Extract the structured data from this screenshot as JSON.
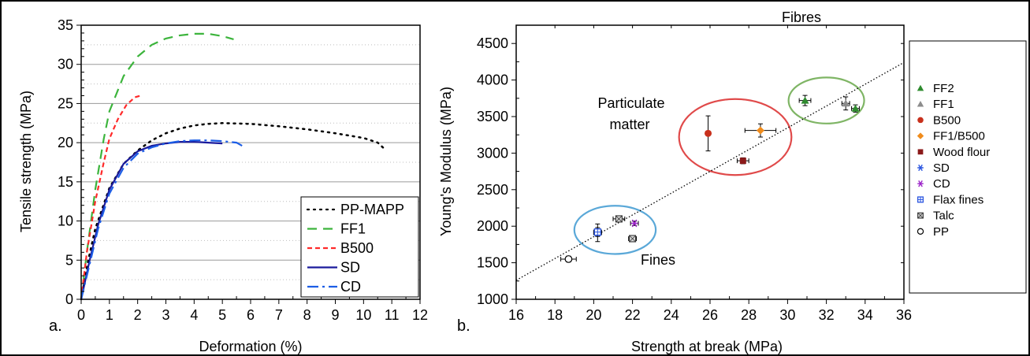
{
  "chart_data": [
    {
      "type": "line",
      "panel_label": "a.",
      "xlabel": "Deformation (%)",
      "ylabel": "Tensile strength (MPa)",
      "xlim": [
        0,
        12
      ],
      "ylim": [
        0,
        35
      ],
      "xticks": [
        "0",
        "1",
        "2",
        "3",
        "4",
        "5",
        "6",
        "7",
        "8",
        "9",
        "10",
        "11",
        "12"
      ],
      "yticks": [
        "0",
        "5",
        "10",
        "15",
        "20",
        "25",
        "30",
        "35"
      ],
      "grid": "horizontal",
      "legend_position": "bottom-right",
      "series": [
        {
          "name": "PP-MAPP",
          "color": "#000000",
          "dash": "2,6",
          "x": [
            0,
            0.25,
            0.5,
            1,
            1.5,
            2,
            2.5,
            3,
            3.5,
            4,
            4.5,
            5,
            6,
            7,
            8,
            9,
            10,
            10.5,
            10.8
          ],
          "y": [
            0,
            5,
            9,
            14.2,
            17.3,
            19,
            20.3,
            21.2,
            21.8,
            22.2,
            22.4,
            22.5,
            22.4,
            22.1,
            21.7,
            21.2,
            20.6,
            20,
            19
          ]
        },
        {
          "name": "FF1",
          "color": "#3cb43c",
          "dash": "12,8",
          "x": [
            0,
            0.2,
            0.5,
            0.8,
            1,
            1.5,
            2,
            2.5,
            3,
            3.5,
            4,
            4.5,
            5,
            5.4
          ],
          "y": [
            0,
            6,
            14,
            20.5,
            24,
            28.5,
            31,
            32.5,
            33.3,
            33.7,
            33.9,
            33.9,
            33.6,
            33.2
          ]
        },
        {
          "name": "B500",
          "color": "#ff2a2a",
          "dash": "6,4",
          "x": [
            0,
            0.2,
            0.5,
            0.8,
            1,
            1.3,
            1.6,
            1.9,
            2.1
          ],
          "y": [
            0,
            6,
            12.5,
            17.5,
            20.5,
            23,
            24.8,
            25.8,
            26
          ]
        },
        {
          "name": "SD",
          "color": "#1a1a9c",
          "dash": "",
          "x": [
            0,
            0.3,
            0.6,
            1,
            1.5,
            2,
            2.5,
            3,
            3.5,
            4,
            4.5,
            5
          ],
          "y": [
            0,
            5,
            9.5,
            14,
            17.3,
            18.9,
            19.6,
            19.9,
            20.1,
            20.1,
            20,
            19.9
          ]
        },
        {
          "name": "CD",
          "color": "#1c5ee6",
          "dash": "14,5,3,5",
          "x": [
            0,
            0.3,
            0.6,
            1,
            1.5,
            2,
            2.5,
            3,
            3.5,
            4,
            4.5,
            5,
            5.5,
            5.7
          ],
          "y": [
            0,
            4.5,
            9,
            13.5,
            16.8,
            18.6,
            19.4,
            19.9,
            20.2,
            20.3,
            20.3,
            20.2,
            20,
            19.6
          ]
        }
      ]
    },
    {
      "type": "scatter",
      "panel_label": "b.",
      "xlabel": "Strength at break (MPa)",
      "ylabel": "Young's Modulus (MPa)",
      "xlim": [
        16,
        36
      ],
      "ylim": [
        1000,
        4750
      ],
      "xticks": [
        "16",
        "18",
        "20",
        "22",
        "24",
        "26",
        "28",
        "30",
        "32",
        "34",
        "36"
      ],
      "yticks": [
        "1000",
        "1500",
        "2000",
        "2500",
        "3000",
        "3500",
        "4000",
        "4500"
      ],
      "legend_position": "right",
      "trendline": {
        "x": [
          16,
          36
        ],
        "y": [
          1260,
          4240
        ]
      },
      "groups": [
        {
          "label": "Fibres",
          "cx": 32,
          "cy": 3720,
          "rx": 1.95,
          "ry": 315,
          "color": "#7fb565"
        },
        {
          "label": "Particulate matter",
          "cx": 27.3,
          "cy": 3220,
          "rx": 2.9,
          "ry": 520,
          "color": "#e04a4a"
        },
        {
          "label": "Fines",
          "cx": 21.1,
          "cy": 1950,
          "rx": 2.1,
          "ry": 330,
          "color": "#5aa8d8"
        }
      ],
      "series": [
        {
          "name": "FF2",
          "marker": "triangle",
          "color": "#2e8b2e",
          "points": [
            {
              "x": 30.9,
              "y": 3720,
              "xerr": 0.3,
              "yerr": 70
            },
            {
              "x": 33.5,
              "y": 3610,
              "xerr": 0.2,
              "yerr": 50
            }
          ]
        },
        {
          "name": "FF1",
          "marker": "triangle",
          "color": "#8c8c8c",
          "points": [
            {
              "x": 33.0,
              "y": 3680,
              "xerr": 0.2,
              "yerr": 90
            }
          ]
        },
        {
          "name": "B500",
          "marker": "circle",
          "color": "#c8301c",
          "points": [
            {
              "x": 25.9,
              "y": 3270,
              "xerr": 0.1,
              "yerr": 240
            }
          ]
        },
        {
          "name": "FF1/B500",
          "marker": "diamond",
          "color": "#f08c1c",
          "points": [
            {
              "x": 28.6,
              "y": 3310,
              "xerr": 0.8,
              "yerr": 90
            }
          ]
        },
        {
          "name": "Wood flour",
          "marker": "square",
          "color": "#8b1a1a",
          "points": [
            {
              "x": 27.7,
              "y": 2895,
              "xerr": 0.3,
              "yerr": 40
            }
          ]
        },
        {
          "name": "SD",
          "marker": "asterisk",
          "color": "#2a55e0",
          "points": [
            {
              "x": 20.2,
              "y": 1910,
              "xerr": 0.2,
              "yerr": 120
            }
          ]
        },
        {
          "name": "CD",
          "marker": "asterisk",
          "color": "#9b22c8",
          "points": [
            {
              "x": 22.1,
              "y": 2040,
              "xerr": 0.2,
              "yerr": 30
            }
          ]
        },
        {
          "name": "Flax fines",
          "marker": "squareplus",
          "color": "#2a55e0",
          "points": [
            {
              "x": 20.2,
              "y": 1920,
              "xerr": 0.2,
              "yerr": 60
            }
          ]
        },
        {
          "name": "Talc",
          "marker": "talc",
          "color": "#808080",
          "points": [
            {
              "x": 21.3,
              "y": 2100,
              "xerr": 0.3,
              "yerr": 40
            },
            {
              "x": 22.0,
              "y": 1830,
              "xerr": 0.2,
              "yerr": 40
            }
          ]
        },
        {
          "name": "PP",
          "marker": "opencircle",
          "color": "#000000",
          "points": [
            {
              "x": 18.7,
              "y": 1550,
              "xerr": 0.4,
              "yerr": 40
            }
          ]
        }
      ]
    }
  ]
}
